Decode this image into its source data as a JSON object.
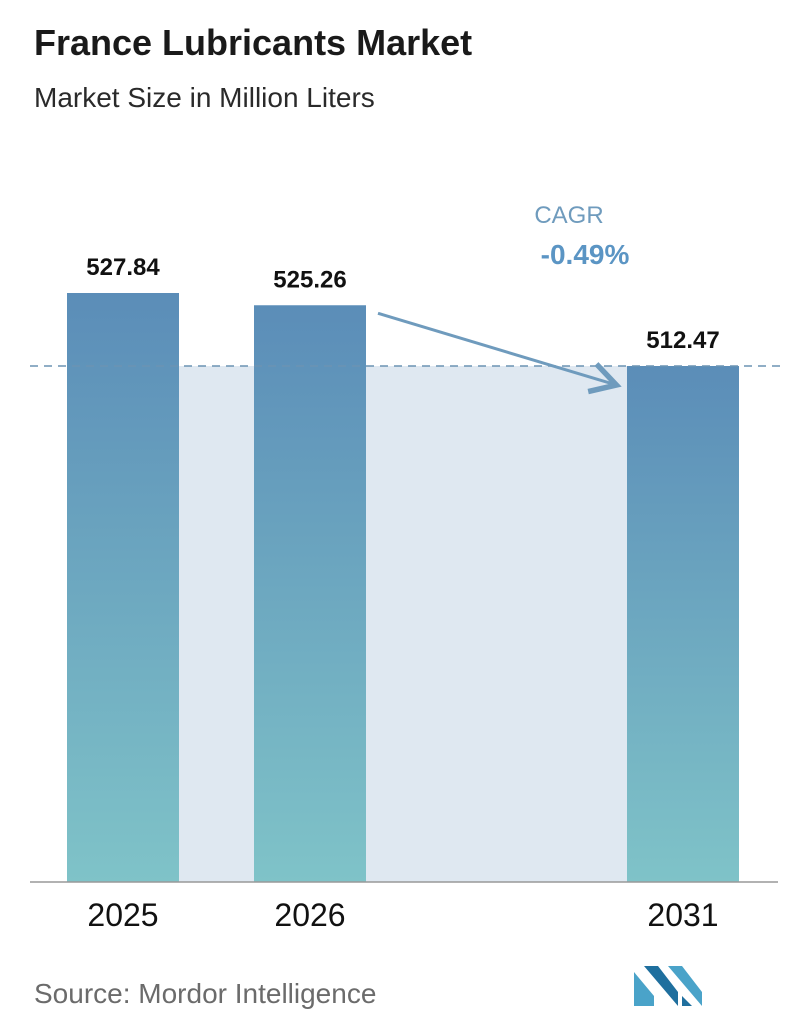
{
  "header": {
    "title": "France Lubricants Market",
    "subtitle": "Market Size in Million Liters"
  },
  "chart_data": {
    "type": "bar",
    "categories": [
      "2025",
      "2026",
      "2031"
    ],
    "values": [
      527.84,
      525.26,
      512.47
    ],
    "value_labels": [
      "527.84",
      "525.26",
      "512.47"
    ],
    "cagr_label": "CAGR",
    "cagr_value": "-0.49%",
    "legend": "none",
    "grid": false,
    "colors": {
      "bar_top": "#5b8db8",
      "bar_bottom": "#7fc3c8",
      "band": "#dfe8f1",
      "reference_line": "#6b93b3",
      "arrow": "#6f9bbd",
      "cagr_label": "#6f9bbd",
      "cagr_value": "#5b95c4"
    }
  },
  "footer": {
    "source": "Source:  Mordor Intelligence",
    "logo": "mordor-intelligence-logo"
  }
}
